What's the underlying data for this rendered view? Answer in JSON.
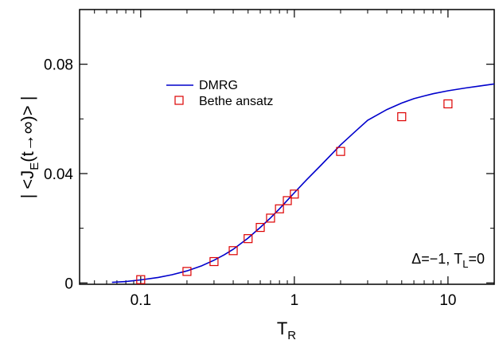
{
  "chart_data": {
    "type": "line",
    "x_scale": "log",
    "xlim": [
      0.04,
      20
    ],
    "ylim": [
      -0.0005,
      0.1
    ],
    "xticks": [
      {
        "value": 0.1,
        "label": "0.1"
      },
      {
        "value": 1,
        "label": "1"
      },
      {
        "value": 10,
        "label": "10"
      }
    ],
    "yticks": [
      {
        "value": 0,
        "label": "0"
      },
      {
        "value": 0.04,
        "label": "0.04"
      },
      {
        "value": 0.08,
        "label": "0.08"
      }
    ],
    "xlabel": {
      "main": "T",
      "sub": "R"
    },
    "ylabel": {
      "prefix": "| <J",
      "sub": "E",
      "suffix": "(t→∞)> |"
    },
    "annotation": {
      "delta": "Δ=−1, T",
      "sub": "L",
      "tail": "=0"
    },
    "legend_position": "upper-left",
    "grid": false,
    "series": [
      {
        "name": "DMRG",
        "kind": "line",
        "color": "#0000cc",
        "x": [
          0.065,
          0.08,
          0.1,
          0.13,
          0.16,
          0.2,
          0.25,
          0.3,
          0.35,
          0.4,
          0.5,
          0.6,
          0.7,
          0.8,
          0.9,
          1.0,
          1.2,
          1.5,
          2.0,
          2.5,
          3.0,
          4.0,
          5.0,
          6.0,
          7.0,
          8.0,
          10.0,
          13.0,
          16.0,
          20.0
        ],
        "y": [
          0.0002,
          0.0005,
          0.0011,
          0.002,
          0.003,
          0.0044,
          0.0063,
          0.0083,
          0.0103,
          0.0123,
          0.0164,
          0.0203,
          0.0238,
          0.0271,
          0.0302,
          0.033,
          0.0377,
          0.0432,
          0.0505,
          0.0555,
          0.0595,
          0.0634,
          0.0658,
          0.0674,
          0.0684,
          0.0692,
          0.0703,
          0.0713,
          0.072,
          0.0728
        ]
      },
      {
        "name": "Bethe ansatz",
        "kind": "scatter",
        "marker": "open-square",
        "color": "#dd0000",
        "x": [
          0.1,
          0.2,
          0.3,
          0.4,
          0.5,
          0.6,
          0.7,
          0.8,
          0.9,
          1.0,
          2.0,
          5.0,
          10.0
        ],
        "y": [
          0.0012,
          0.0042,
          0.0078,
          0.0118,
          0.0162,
          0.0203,
          0.0237,
          0.0271,
          0.0301,
          0.0325,
          0.0481,
          0.0608,
          0.0655
        ]
      }
    ]
  }
}
